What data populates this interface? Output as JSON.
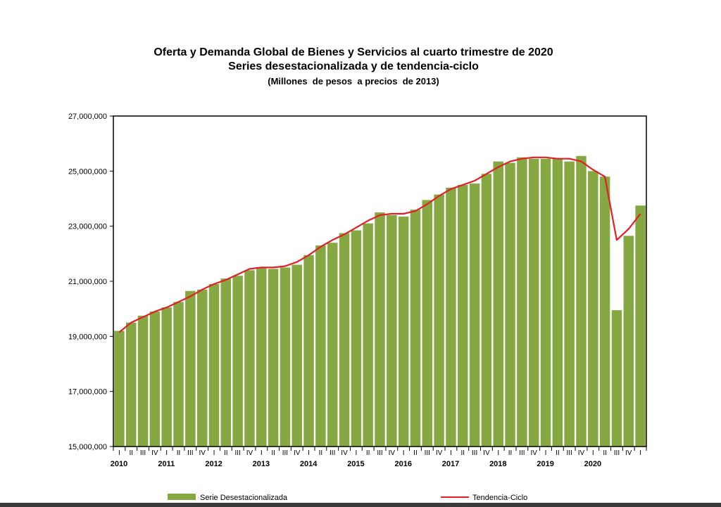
{
  "colors": {
    "bar": "#86a843",
    "line": "#e31e24",
    "axis": "#000000",
    "background": "#ffffff"
  },
  "chart_data": {
    "type": "bar",
    "title": "Oferta y Demanda Global de Bienes y Servicios al cuarto trimestre de 2020",
    "subtitle": "Series desestacionalizada y de tendencia-ciclo",
    "units": "(Millones  de pesos  a precios  de 2013)",
    "xlabel": "",
    "ylabel": "",
    "ylim": [
      15000000,
      27000000
    ],
    "y_ticks": [
      15000000,
      17000000,
      19000000,
      21000000,
      23000000,
      25000000,
      27000000
    ],
    "y_tick_labels": [
      "15,000,000",
      "17,000,000",
      "19,000,000",
      "21,000,000",
      "23,000,000",
      "25,000,000",
      "27,000,000"
    ],
    "grid": false,
    "legend_position": "bottom",
    "quarter_labels": [
      "I",
      "II",
      "III",
      "IV"
    ],
    "years": [
      "2010",
      "2011",
      "2012",
      "2013",
      "2014",
      "2015",
      "2016",
      "2017",
      "2018",
      "2019",
      "2020"
    ],
    "series": [
      {
        "name": "Serie Desestacionalizada",
        "type": "bar",
        "values": [
          19200000,
          19500000,
          19750000,
          19900000,
          20050000,
          20250000,
          20650000,
          20700000,
          20900000,
          21100000,
          21200000,
          21400000,
          21500000,
          21450000,
          21500000,
          21600000,
          21950000,
          22300000,
          22400000,
          22750000,
          22850000,
          23100000,
          23500000,
          23400000,
          23350000,
          23600000,
          23950000,
          24150000,
          24400000,
          24500000,
          24550000,
          24900000,
          25350000,
          25300000,
          25500000,
          25450000,
          25450000,
          25450000,
          25350000,
          25550000,
          25000000,
          24800000,
          19950000,
          22650000,
          23750000
        ]
      },
      {
        "name": "Tendencia-Ciclo",
        "type": "line",
        "values": [
          19150000,
          19500000,
          19700000,
          19900000,
          20050000,
          20250000,
          20450000,
          20700000,
          20900000,
          21050000,
          21250000,
          21450000,
          21500000,
          21500000,
          21550000,
          21700000,
          21950000,
          22250000,
          22500000,
          22700000,
          22950000,
          23200000,
          23400000,
          23450000,
          23450000,
          23550000,
          23800000,
          24100000,
          24350000,
          24500000,
          24650000,
          24900000,
          25150000,
          25350000,
          25450000,
          25500000,
          25500000,
          25450000,
          25450000,
          25350000,
          25050000,
          24800000,
          22500000,
          22900000,
          23450000
        ]
      }
    ]
  }
}
